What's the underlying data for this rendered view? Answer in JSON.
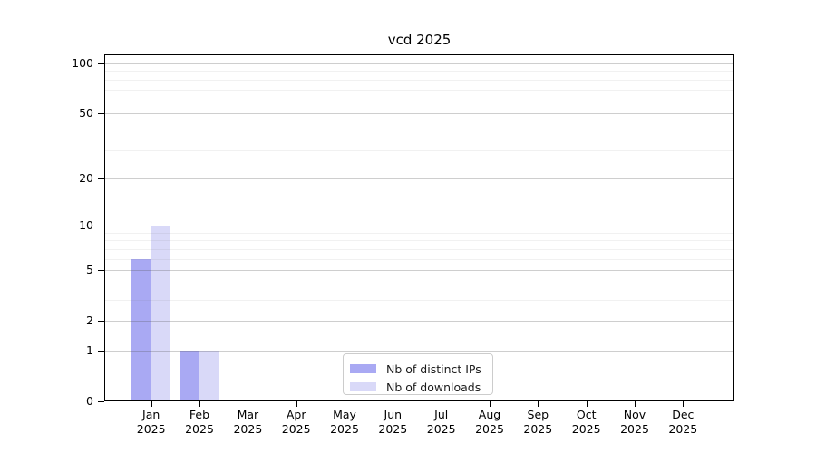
{
  "chart_data": {
    "type": "bar",
    "title": "vcd 2025",
    "categories": [
      {
        "month": "Jan",
        "year": "2025"
      },
      {
        "month": "Feb",
        "year": "2025"
      },
      {
        "month": "Mar",
        "year": "2025"
      },
      {
        "month": "Apr",
        "year": "2025"
      },
      {
        "month": "May",
        "year": "2025"
      },
      {
        "month": "Jun",
        "year": "2025"
      },
      {
        "month": "Jul",
        "year": "2025"
      },
      {
        "month": "Aug",
        "year": "2025"
      },
      {
        "month": "Sep",
        "year": "2025"
      },
      {
        "month": "Oct",
        "year": "2025"
      },
      {
        "month": "Nov",
        "year": "2025"
      },
      {
        "month": "Dec",
        "year": "2025"
      }
    ],
    "series": [
      {
        "name": "Nb of distinct IPs",
        "color": "#a9a9f3",
        "values": [
          6,
          1,
          0,
          0,
          0,
          0,
          0,
          0,
          0,
          0,
          0,
          0
        ]
      },
      {
        "name": "Nb of downloads",
        "color": "#d9d9f8",
        "values": [
          10,
          1,
          0,
          0,
          0,
          0,
          0,
          0,
          0,
          0,
          0,
          0
        ]
      }
    ],
    "y_axis": {
      "scale": "log10(1+value)",
      "tick_values": [
        0,
        1,
        2,
        5,
        10,
        20,
        50,
        100
      ],
      "minor_gridline_values": [
        3,
        4,
        6,
        7,
        8,
        9,
        30,
        40,
        60,
        70,
        80,
        90
      ],
      "top_value": 113
    },
    "xlabel": "",
    "ylabel": "",
    "grid": true,
    "legend_position": "lower center",
    "colors": {
      "major_grid": "#c8c8c8",
      "minor_grid": "#ededed",
      "spine": "#000000",
      "text": "#000000"
    }
  }
}
